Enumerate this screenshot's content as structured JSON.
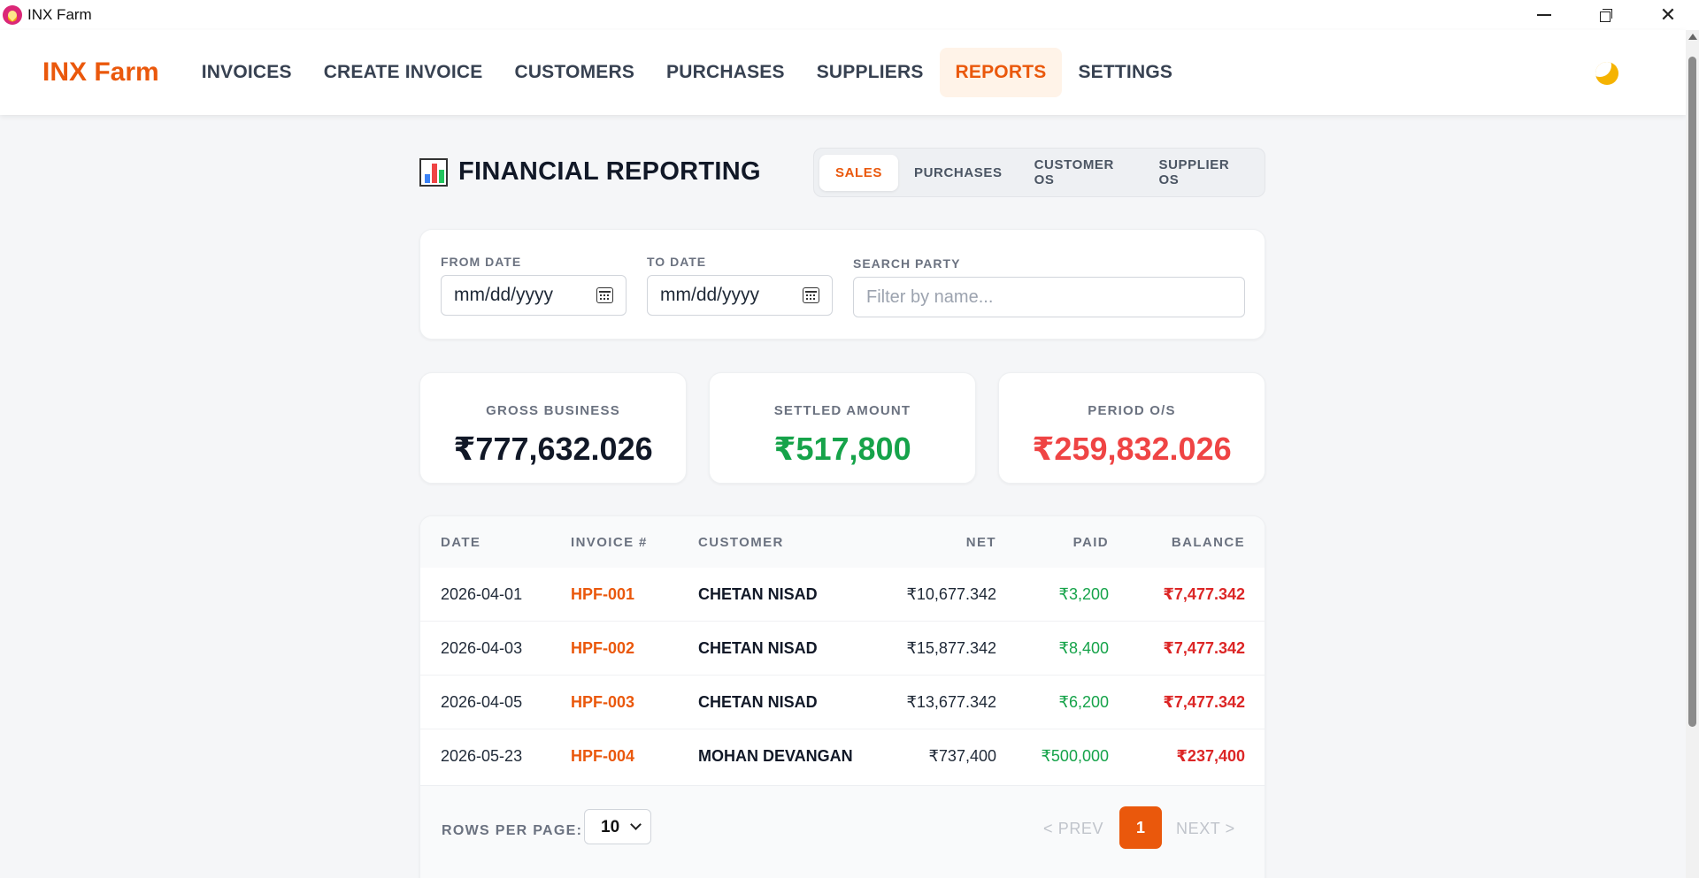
{
  "window": {
    "title": "INX Farm"
  },
  "header": {
    "brand": "INX Farm",
    "nav": [
      {
        "label": "INVOICES"
      },
      {
        "label": "CREATE INVOICE"
      },
      {
        "label": "CUSTOMERS"
      },
      {
        "label": "PURCHASES"
      },
      {
        "label": "SUPPLIERS"
      },
      {
        "label": "REPORTS",
        "active": true
      },
      {
        "label": "SETTINGS"
      }
    ],
    "theme_icon": "moon-icon"
  },
  "page": {
    "title": "FINANCIAL REPORTING",
    "title_icon": "bar-chart-icon",
    "tabs": [
      {
        "label": "SALES",
        "active": true
      },
      {
        "label": "PURCHASES"
      },
      {
        "label": "CUSTOMER OS"
      },
      {
        "label": "SUPPLIER OS"
      }
    ]
  },
  "filters": {
    "from_label": "FROM DATE",
    "from_value": "mm/dd/yyyy",
    "to_label": "TO DATE",
    "to_value": "mm/dd/yyyy",
    "search_label": "SEARCH PARTY",
    "search_placeholder": "Filter by name..."
  },
  "stats": [
    {
      "label": "GROSS BUSINESS",
      "value": "₹777,632.026",
      "color": "#111827"
    },
    {
      "label": "SETTLED AMOUNT",
      "value": "₹517,800",
      "color": "#16a34a"
    },
    {
      "label": "PERIOD O/S",
      "value": "₹259,832.026",
      "color": "#ef4444"
    }
  ],
  "table": {
    "headers": {
      "date": "DATE",
      "invoice": "INVOICE #",
      "customer": "CUSTOMER",
      "net": "NET",
      "paid": "PAID",
      "balance": "BALANCE"
    },
    "rows": [
      {
        "date": "2026-04-01",
        "invoice": "HPF-001",
        "customer": "CHETAN NISAD",
        "net": "₹10,677.342",
        "paid": "₹3,200",
        "balance": "₹7,477.342"
      },
      {
        "date": "2026-04-03",
        "invoice": "HPF-002",
        "customer": "CHETAN NISAD",
        "net": "₹15,877.342",
        "paid": "₹8,400",
        "balance": "₹7,477.342"
      },
      {
        "date": "2026-04-05",
        "invoice": "HPF-003",
        "customer": "CHETAN NISAD",
        "net": "₹13,677.342",
        "paid": "₹6,200",
        "balance": "₹7,477.342"
      },
      {
        "date": "2026-05-23",
        "invoice": "HPF-004",
        "customer": "MOHAN DEVANGAN",
        "net": "₹737,400",
        "paid": "₹500,000",
        "balance": "₹237,400"
      }
    ]
  },
  "pagination": {
    "rows_label": "ROWS PER PAGE:",
    "rows_value": "10",
    "prev": "< PREV",
    "page": "1",
    "next": "NEXT >"
  }
}
